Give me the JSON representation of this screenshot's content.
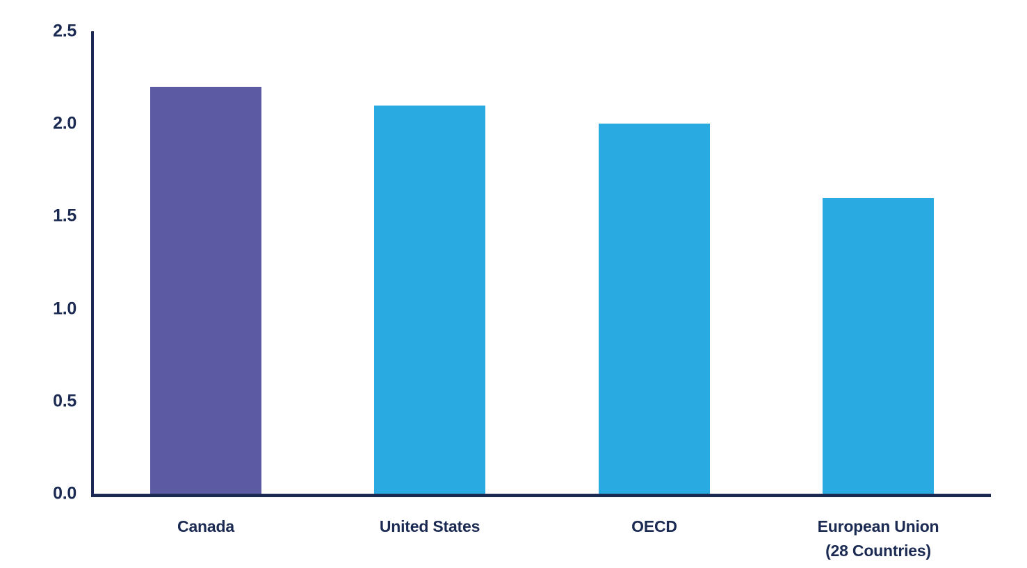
{
  "chart_data": {
    "type": "bar",
    "categories": [
      "Canada",
      "United States",
      "OECD",
      "European Union\n(28 Countries)"
    ],
    "values": [
      2.2,
      2.1,
      2.0,
      1.6
    ],
    "bar_colors": [
      "#5B5AA3",
      "#29ABE2",
      "#29ABE2",
      "#29ABE2"
    ],
    "title": "",
    "xlabel": "",
    "ylabel": "",
    "ylim": [
      0.0,
      2.5
    ],
    "yticks": [
      0.0,
      0.5,
      1.0,
      1.5,
      2.0,
      2.5
    ],
    "ytick_labels": [
      "0.0",
      "0.5",
      "1.0",
      "1.5",
      "2.0",
      "2.5"
    ],
    "grid": false,
    "legend_position": "none",
    "colors": {
      "axis": "#1B2A52",
      "tick_label": "#1B2A52",
      "category_label": "#1B2A52",
      "highlight_bar": "#5B5AA3",
      "default_bar": "#29ABE2",
      "background": "#FFFFFF"
    }
  }
}
